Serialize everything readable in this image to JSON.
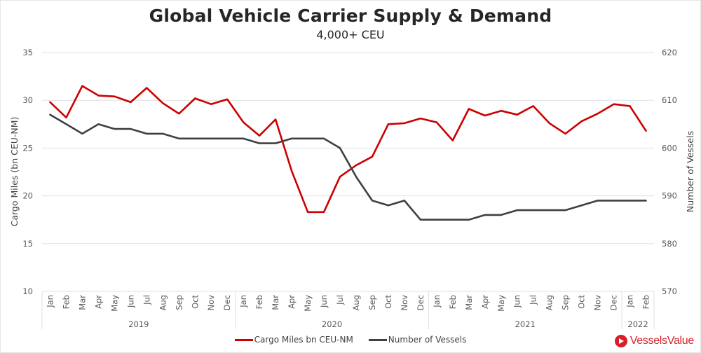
{
  "colors": {
    "cargo": "#cc0000",
    "vessels": "#404040",
    "grid": "#e0e0e0",
    "brand": "#d6202a"
  },
  "branding": {
    "name": "VesselsValue",
    "icon": "play-triangle-in-circle-icon"
  },
  "chart_data": {
    "type": "line",
    "title": "Global Vehicle Carrier Supply & Demand",
    "subtitle": "4,000+ CEU",
    "xlabel": "",
    "ylabel": "Cargo Miles (bn CEU-NM)",
    "y2label": "Number of Vessels",
    "ylim": [
      10,
      35
    ],
    "y2lim": [
      570,
      620
    ],
    "yticks": [
      "10",
      "15",
      "20",
      "25",
      "30",
      "35"
    ],
    "y2ticks": [
      "570",
      "580",
      "590",
      "600",
      "610",
      "620"
    ],
    "grid": true,
    "legend_position": "bottom",
    "year_groups": [
      {
        "label": "2019",
        "count": 12
      },
      {
        "label": "2020",
        "count": 12
      },
      {
        "label": "2021",
        "count": 12
      },
      {
        "label": "2022",
        "count": 2
      }
    ],
    "categories": [
      "Jan",
      "Feb",
      "Mar",
      "Apr",
      "May",
      "Jun",
      "Jul",
      "Aug",
      "Sep",
      "Oct",
      "Nov",
      "Dec",
      "Jan",
      "Feb",
      "Mar",
      "Apr",
      "May",
      "Jun",
      "Jul",
      "Aug",
      "Sep",
      "Oct",
      "Nov",
      "Dec",
      "Jan",
      "Feb",
      "Mar",
      "Apr",
      "May",
      "Jun",
      "Jul",
      "Aug",
      "Sep",
      "Oct",
      "Nov",
      "Dec",
      "Jan",
      "Feb"
    ],
    "series": [
      {
        "name": "Cargo Miles bn CEU-NM",
        "axis": "left",
        "values": [
          29.8,
          28.2,
          31.5,
          30.5,
          30.4,
          29.8,
          31.3,
          29.7,
          28.6,
          30.2,
          29.6,
          30.1,
          27.7,
          26.3,
          28.0,
          22.6,
          18.3,
          18.3,
          22.0,
          23.2,
          24.1,
          27.5,
          27.6,
          28.1,
          27.7,
          25.8,
          29.1,
          28.4,
          28.9,
          28.5,
          29.4,
          27.6,
          26.5,
          27.8,
          28.6,
          29.6,
          29.4,
          26.8
        ]
      },
      {
        "name": "Number of Vessels",
        "axis": "right",
        "values": [
          607,
          605,
          603,
          605,
          604,
          604,
          603,
          603,
          602,
          602,
          602,
          602,
          602,
          601,
          601,
          602,
          602,
          602,
          600,
          594,
          589,
          588,
          589,
          585,
          585,
          585,
          585,
          586,
          586,
          587,
          587,
          587,
          587,
          588,
          589,
          589,
          589,
          589
        ]
      }
    ]
  }
}
